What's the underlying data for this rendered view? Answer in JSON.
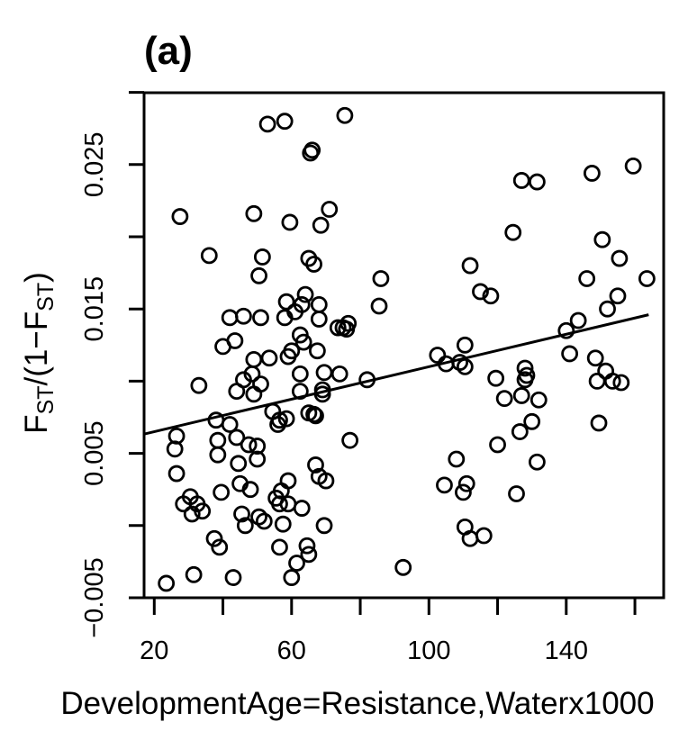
{
  "panel_label": "(a)",
  "chart_data": {
    "type": "scatter",
    "title": "",
    "xlabel": "DevelopmentAge=Resistance,Waterx1000",
    "ylabel_main": "F",
    "ylabel_sub": "ST",
    "ylabel_middle": "/(1−F",
    "ylabel_sub2": "ST",
    "ylabel_end": ")",
    "xlim": [
      20,
      164
    ],
    "ylim": [
      -0.005,
      0.03
    ],
    "x_ticks": [
      20,
      40,
      60,
      80,
      100,
      120,
      140,
      160
    ],
    "x_tick_labels": [
      "20",
      "",
      "60",
      "",
      "100",
      "",
      "140",
      ""
    ],
    "y_ticks": [
      -0.005,
      0.0,
      0.005,
      0.01,
      0.015,
      0.02,
      0.025,
      0.03
    ],
    "y_tick_labels": [
      "−0.005",
      "",
      "0.005",
      "",
      "0.015",
      "",
      "0.025",
      ""
    ],
    "grid": false,
    "trend_line": {
      "x": [
        20,
        164
      ],
      "y": [
        0.0065,
        0.0146
      ]
    },
    "points": [
      [
        23.5,
        -0.004
      ],
      [
        26.5,
        0.0062
      ],
      [
        26,
        0.0053
      ],
      [
        26.5,
        0.0036
      ],
      [
        27.5,
        0.0214
      ],
      [
        28.5,
        0.0015
      ],
      [
        30.5,
        0.002
      ],
      [
        31,
        0.0008
      ],
      [
        31.5,
        -0.0034
      ],
      [
        32.5,
        0.0015
      ],
      [
        33,
        0.0097
      ],
      [
        34,
        0.001
      ],
      [
        36,
        0.0187
      ],
      [
        37.5,
        -0.0009
      ],
      [
        38,
        0.0073
      ],
      [
        38.5,
        0.0059
      ],
      [
        38.5,
        0.0049
      ],
      [
        39,
        -0.0015
      ],
      [
        39.5,
        0.0023
      ],
      [
        40,
        0.0124
      ],
      [
        42,
        0.0144
      ],
      [
        42,
        0.007
      ],
      [
        43,
        -0.0036
      ],
      [
        43.5,
        0.0128
      ],
      [
        44,
        0.0061
      ],
      [
        44,
        0.0093
      ],
      [
        44.5,
        0.0043
      ],
      [
        45,
        0.0029
      ],
      [
        45.5,
        0.0008
      ],
      [
        46,
        0.0101
      ],
      [
        46,
        0.0145
      ],
      [
        46.5,
        0.0
      ],
      [
        47.5,
        0.0056
      ],
      [
        48,
        0.0025
      ],
      [
        48.5,
        0.0105
      ],
      [
        49,
        0.0115
      ],
      [
        49,
        0.0091
      ],
      [
        49,
        0.0216
      ],
      [
        50,
        0.0055
      ],
      [
        50,
        0.0046
      ],
      [
        50.5,
        0.0006
      ],
      [
        50.5,
        0.0173
      ],
      [
        51,
        0.0144
      ],
      [
        51,
        0.0098
      ],
      [
        51.5,
        0.0186
      ],
      [
        52,
        0.0003
      ],
      [
        53,
        0.0278
      ],
      [
        53.5,
        0.0116
      ],
      [
        54.5,
        0.0079
      ],
      [
        55.5,
        0.0019
      ],
      [
        56,
        0.007
      ],
      [
        56.5,
        0.0073
      ],
      [
        56.5,
        0.0015
      ],
      [
        56.5,
        -0.0015
      ],
      [
        57,
        0.0024
      ],
      [
        57.5,
        0.0001
      ],
      [
        58,
        0.0144
      ],
      [
        58,
        0.028
      ],
      [
        58.5,
        0.0074
      ],
      [
        58.5,
        0.0155
      ],
      [
        59,
        0.0117
      ],
      [
        59,
        0.0031
      ],
      [
        59,
        0.0015
      ],
      [
        59.5,
        0.021
      ],
      [
        60,
        0.0121
      ],
      [
        60,
        -0.0036
      ],
      [
        61,
        0.0148
      ],
      [
        61.5,
        -0.0026
      ],
      [
        62.5,
        0.0132
      ],
      [
        62.5,
        0.0105
      ],
      [
        62.5,
        0.0093
      ],
      [
        63,
        0.0153
      ],
      [
        63,
        0.0012
      ],
      [
        63.5,
        0.0127
      ],
      [
        64,
        0.016
      ],
      [
        64.5,
        -0.0014
      ],
      [
        65,
        0.0078
      ],
      [
        65,
        0.0185
      ],
      [
        65,
        -0.002
      ],
      [
        65.5,
        0.0258
      ],
      [
        66,
        0.026
      ],
      [
        66.5,
        0.0181
      ],
      [
        66.5,
        0.0077
      ],
      [
        67,
        0.0042
      ],
      [
        67,
        0.0076
      ],
      [
        67.5,
        0.0121
      ],
      [
        68,
        0.0153
      ],
      [
        68,
        0.0143
      ],
      [
        68,
        0.0034
      ],
      [
        68.5,
        0.0208
      ],
      [
        69,
        0.0094
      ],
      [
        69,
        0.0091
      ],
      [
        69.5,
        0.0
      ],
      [
        69.5,
        0.0106
      ],
      [
        70,
        0.0031
      ],
      [
        71,
        0.0219
      ],
      [
        73.5,
        0.0137
      ],
      [
        74,
        0.0105
      ],
      [
        75,
        0.0137
      ],
      [
        75.5,
        0.0284
      ],
      [
        76,
        0.0136
      ],
      [
        76.5,
        0.014
      ],
      [
        77,
        0.0059
      ],
      [
        82,
        0.0101
      ],
      [
        85.5,
        0.0152
      ],
      [
        86,
        0.0171
      ],
      [
        92.5,
        -0.0029
      ],
      [
        102.5,
        0.0118
      ],
      [
        104.5,
        0.0028
      ],
      [
        105,
        0.0112
      ],
      [
        108,
        0.0046
      ],
      [
        109,
        0.0113
      ],
      [
        110,
        0.0023
      ],
      [
        110.5,
        0.0125
      ],
      [
        110.5,
        0.011
      ],
      [
        110.5,
        -0.0001
      ],
      [
        111,
        0.0029
      ],
      [
        112,
        0.018
      ],
      [
        112,
        -0.0009
      ],
      [
        115,
        0.0162
      ],
      [
        116,
        -0.0007
      ],
      [
        118,
        0.0159
      ],
      [
        119.5,
        0.0102
      ],
      [
        120,
        0.0056
      ],
      [
        122,
        0.0088
      ],
      [
        124.5,
        0.0203
      ],
      [
        125.5,
        0.0022
      ],
      [
        126.5,
        0.0065
      ],
      [
        127,
        0.009
      ],
      [
        127,
        0.0239
      ],
      [
        128,
        0.0101
      ],
      [
        128,
        0.0109
      ],
      [
        128.5,
        0.0104
      ],
      [
        130,
        0.0072
      ],
      [
        131.5,
        0.0238
      ],
      [
        131.5,
        0.0044
      ],
      [
        132,
        0.0087
      ],
      [
        140,
        0.0135
      ],
      [
        141,
        0.0119
      ],
      [
        143.5,
        0.0142
      ],
      [
        146,
        0.0171
      ],
      [
        147.5,
        0.0244
      ],
      [
        148.5,
        0.0116
      ],
      [
        149,
        0.01
      ],
      [
        149.5,
        0.0071
      ],
      [
        150.5,
        0.0198
      ],
      [
        151.5,
        0.0107
      ],
      [
        152,
        0.015
      ],
      [
        153.5,
        0.01
      ],
      [
        155,
        0.0159
      ],
      [
        155.5,
        0.0185
      ],
      [
        156,
        0.0099
      ],
      [
        159.5,
        0.0249
      ],
      [
        163.5,
        0.0171
      ]
    ]
  }
}
